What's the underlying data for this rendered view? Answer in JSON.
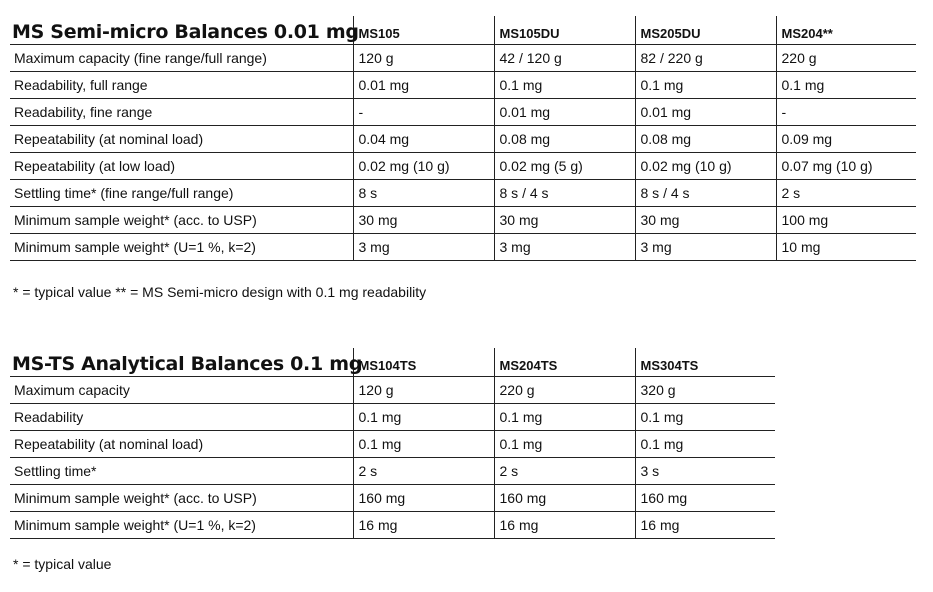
{
  "semi_micro": {
    "title": "MS Semi-micro Balances 0.01 mg",
    "models": [
      "MS105",
      "MS105DU",
      "MS205DU",
      "MS204**"
    ],
    "rows": [
      {
        "label": "Maximum capacity (fine range/full range)",
        "values": [
          "120 g",
          "42 / 120 g",
          "82 / 220 g",
          "220 g"
        ]
      },
      {
        "label": "Readability, full range",
        "values": [
          "0.01 mg",
          "0.1 mg",
          "0.1 mg",
          "0.1 mg"
        ]
      },
      {
        "label": "Readability, fine range",
        "values": [
          "-",
          "0.01 mg",
          "0.01 mg",
          "-"
        ]
      },
      {
        "label": "Repeatability (at nominal load)",
        "values": [
          "0.04 mg",
          "0.08 mg",
          "0.08 mg",
          "0.09 mg"
        ]
      },
      {
        "label": "Repeatability (at low load)",
        "values": [
          "0.02 mg (10 g)",
          "0.02 mg (5 g)",
          "0.02 mg (10 g)",
          "0.07 mg (10 g)"
        ]
      },
      {
        "label": "Settling time* (fine range/full range)",
        "values": [
          "8 s",
          "8 s / 4 s",
          "8 s / 4 s",
          "2 s"
        ]
      },
      {
        "label": "Minimum sample weight* (acc. to USP)",
        "values": [
          "30 mg",
          "30 mg",
          "30 mg",
          "100 mg"
        ]
      },
      {
        "label": "Minimum sample weight* (U=1 %, k=2)",
        "values": [
          "3 mg",
          "3 mg",
          "3 mg",
          "10 mg"
        ]
      }
    ],
    "footnote": "* = typical value  ** = MS Semi-micro design with 0.1 mg readability"
  },
  "analytical": {
    "title": "MS-TS Analytical Balances 0.1 mg",
    "models": [
      "MS104TS",
      "MS204TS",
      "MS304TS"
    ],
    "rows": [
      {
        "label": "Maximum capacity",
        "values": [
          "120 g",
          "220 g",
          "320 g"
        ]
      },
      {
        "label": "Readability",
        "values": [
          "0.1 mg",
          "0.1 mg",
          "0.1 mg"
        ]
      },
      {
        "label": "Repeatability (at nominal load)",
        "values": [
          "0.1 mg",
          "0.1 mg",
          "0.1 mg"
        ]
      },
      {
        "label": "Settling time*",
        "values": [
          "2 s",
          "2 s",
          "3 s"
        ]
      },
      {
        "label": "Minimum sample weight* (acc. to USP)",
        "values": [
          "160 mg",
          "160 mg",
          "160 mg"
        ]
      },
      {
        "label": "Minimum sample weight* (U=1 %, k=2)",
        "values": [
          "16 mg",
          "16 mg",
          "16 mg"
        ]
      }
    ],
    "footnote": "* = typical value"
  }
}
